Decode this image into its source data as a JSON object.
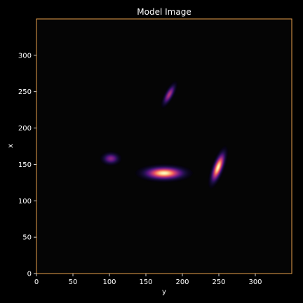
{
  "chart_data": {
    "type": "heatmap",
    "title": "Model Image",
    "xlabel": "y",
    "ylabel": "x",
    "xlim": [
      0,
      350
    ],
    "ylim": [
      0,
      350
    ],
    "xticks": [
      0,
      50,
      100,
      150,
      200,
      250,
      300
    ],
    "yticks": [
      0,
      50,
      100,
      150,
      200,
      250,
      300
    ],
    "grid": true,
    "colormap": "magma",
    "colors": {
      "background": "#000000",
      "plot_background": "#050505",
      "frame": "#e8a04a",
      "grid": "#2a2a2a",
      "text": "#ffffff"
    },
    "sources": [
      {
        "x": 175,
        "y": 138,
        "sigma_major": 14,
        "sigma_minor": 4.5,
        "angle": 0,
        "peak": 1.0
      },
      {
        "x": 249,
        "y": 146,
        "sigma_major": 11,
        "sigma_minor": 3.2,
        "angle": 70,
        "peak": 1.0
      },
      {
        "x": 102,
        "y": 158,
        "sigma_major": 6,
        "sigma_minor": 4,
        "angle": 0,
        "peak": 0.4
      },
      {
        "x": 182,
        "y": 246,
        "sigma_major": 8,
        "sigma_minor": 2.6,
        "angle": 62,
        "peak": 0.5
      }
    ]
  }
}
